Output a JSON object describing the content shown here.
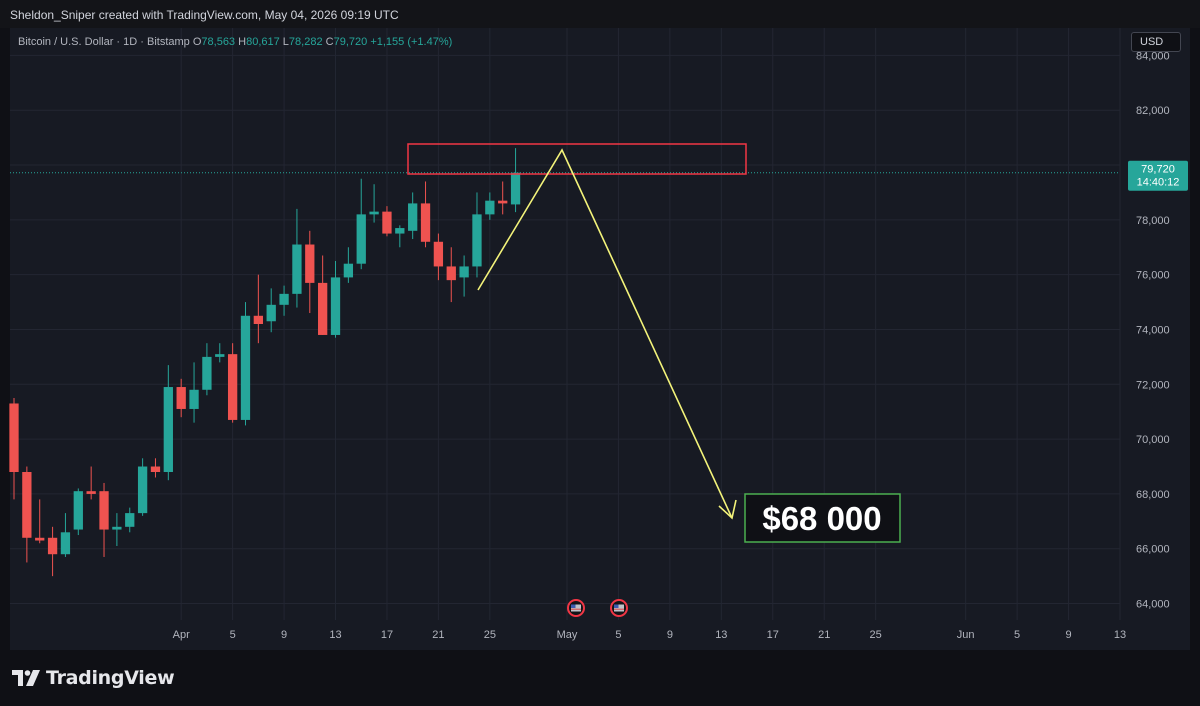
{
  "credit": "Sheldon_Sniper created with TradingView.com, May 04, 2026 09:19 UTC",
  "legend": {
    "symbol": "Bitcoin / U.S. Dollar · 1D · Bitstamp",
    "open_label": "O",
    "open": "78,563",
    "high_label": "H",
    "high": "80,617",
    "low_label": "L",
    "low": "78,282",
    "close_label": "C",
    "close": "79,720",
    "change": "+1,155 (+1.47%)"
  },
  "currency": "USD",
  "price_tag": {
    "price": "79,720",
    "countdown": "14:40:12"
  },
  "annotation": {
    "target_label": "$68 000"
  },
  "footer": {
    "brand": "TradingView"
  },
  "colors": {
    "up": "#26a69a",
    "down": "#ef5350",
    "resistance_box": "#f23645",
    "arrow": "#f3f37a",
    "target_box": "#4caf50",
    "background": "#171a23"
  },
  "icons": [
    "us-flag-event-icon",
    "us-flag-event-icon",
    "tradingview-logo-icon"
  ],
  "chart_data": {
    "type": "candlestick",
    "ylim": [
      63400,
      85000
    ],
    "yticks": [
      64000,
      66000,
      68000,
      70000,
      72000,
      74000,
      76000,
      78000,
      80000,
      82000,
      84000
    ],
    "ytick_labels": [
      "64,000",
      "66,000",
      "68,000",
      "70,000",
      "72,000",
      "74,000",
      "76,000",
      "78,000",
      "80,000",
      "82,000",
      "84,000"
    ],
    "xlim": [
      "2026-03-19",
      "2026-06-13"
    ],
    "xticks": [
      {
        "date": "2026-04-01",
        "label": "Apr"
      },
      {
        "date": "2026-04-05",
        "label": "5"
      },
      {
        "date": "2026-04-09",
        "label": "9"
      },
      {
        "date": "2026-04-13",
        "label": "13"
      },
      {
        "date": "2026-04-17",
        "label": "17"
      },
      {
        "date": "2026-04-21",
        "label": "21"
      },
      {
        "date": "2026-04-25",
        "label": "25"
      },
      {
        "date": "2026-05-01",
        "label": "May"
      },
      {
        "date": "2026-05-05",
        "label": "5"
      },
      {
        "date": "2026-05-09",
        "label": "9"
      },
      {
        "date": "2026-05-13",
        "label": "13"
      },
      {
        "date": "2026-05-17",
        "label": "17"
      },
      {
        "date": "2026-05-21",
        "label": "21"
      },
      {
        "date": "2026-05-25",
        "label": "25"
      },
      {
        "date": "2026-06-01",
        "label": "Jun"
      },
      {
        "date": "2026-06-05",
        "label": "5"
      },
      {
        "date": "2026-06-09",
        "label": "9"
      },
      {
        "date": "2026-06-13",
        "label": "13"
      }
    ],
    "last_price": 79720,
    "candles": [
      {
        "date": "2026-03-19",
        "o": 71300,
        "h": 71500,
        "l": 67800,
        "c": 68800
      },
      {
        "date": "2026-03-20",
        "o": 68800,
        "h": 69000,
        "l": 65500,
        "c": 66400
      },
      {
        "date": "2026-03-21",
        "o": 66400,
        "h": 67800,
        "l": 66200,
        "c": 66300
      },
      {
        "date": "2026-03-22",
        "o": 66400,
        "h": 66800,
        "l": 65000,
        "c": 65800
      },
      {
        "date": "2026-03-23",
        "o": 65800,
        "h": 67300,
        "l": 65700,
        "c": 66600
      },
      {
        "date": "2026-03-24",
        "o": 66700,
        "h": 68200,
        "l": 66500,
        "c": 68100
      },
      {
        "date": "2026-03-25",
        "o": 68100,
        "h": 69000,
        "l": 67800,
        "c": 68000
      },
      {
        "date": "2026-03-26",
        "o": 68100,
        "h": 68400,
        "l": 65700,
        "c": 66700
      },
      {
        "date": "2026-03-27",
        "o": 66700,
        "h": 67300,
        "l": 66100,
        "c": 66800
      },
      {
        "date": "2026-03-28",
        "o": 66800,
        "h": 67500,
        "l": 66600,
        "c": 67300
      },
      {
        "date": "2026-03-29",
        "o": 67300,
        "h": 69300,
        "l": 67200,
        "c": 69000
      },
      {
        "date": "2026-03-30",
        "o": 69000,
        "h": 69300,
        "l": 68600,
        "c": 68800
      },
      {
        "date": "2026-03-31",
        "o": 68800,
        "h": 72700,
        "l": 68500,
        "c": 71900
      },
      {
        "date": "2026-04-01",
        "o": 71900,
        "h": 72200,
        "l": 70800,
        "c": 71100
      },
      {
        "date": "2026-04-02",
        "o": 71100,
        "h": 72800,
        "l": 70600,
        "c": 71800
      },
      {
        "date": "2026-04-03",
        "o": 71800,
        "h": 73500,
        "l": 71600,
        "c": 73000
      },
      {
        "date": "2026-04-04",
        "o": 73000,
        "h": 73500,
        "l": 72800,
        "c": 73100
      },
      {
        "date": "2026-04-05",
        "o": 73100,
        "h": 73500,
        "l": 70600,
        "c": 70700
      },
      {
        "date": "2026-04-06",
        "o": 70700,
        "h": 75000,
        "l": 70500,
        "c": 74500
      },
      {
        "date": "2026-04-07",
        "o": 74500,
        "h": 76000,
        "l": 73500,
        "c": 74200
      },
      {
        "date": "2026-04-08",
        "o": 74300,
        "h": 75500,
        "l": 73900,
        "c": 74900
      },
      {
        "date": "2026-04-09",
        "o": 74900,
        "h": 75600,
        "l": 74500,
        "c": 75300
      },
      {
        "date": "2026-04-10",
        "o": 75300,
        "h": 78400,
        "l": 74800,
        "c": 77100
      },
      {
        "date": "2026-04-11",
        "o": 77100,
        "h": 77600,
        "l": 74600,
        "c": 75700
      },
      {
        "date": "2026-04-12",
        "o": 75700,
        "h": 76700,
        "l": 73800,
        "c": 73800
      },
      {
        "date": "2026-04-13",
        "o": 73800,
        "h": 76500,
        "l": 73700,
        "c": 75900
      },
      {
        "date": "2026-04-14",
        "o": 75900,
        "h": 77000,
        "l": 75700,
        "c": 76400
      },
      {
        "date": "2026-04-15",
        "o": 76400,
        "h": 79500,
        "l": 76200,
        "c": 78200
      },
      {
        "date": "2026-04-16",
        "o": 78200,
        "h": 79300,
        "l": 77900,
        "c": 78300
      },
      {
        "date": "2026-04-17",
        "o": 78300,
        "h": 78500,
        "l": 77400,
        "c": 77500
      },
      {
        "date": "2026-04-18",
        "o": 77500,
        "h": 77800,
        "l": 77000,
        "c": 77700
      },
      {
        "date": "2026-04-19",
        "o": 77600,
        "h": 79000,
        "l": 77300,
        "c": 78600
      },
      {
        "date": "2026-04-20",
        "o": 78600,
        "h": 79400,
        "l": 77000,
        "c": 77200
      },
      {
        "date": "2026-04-21",
        "o": 77200,
        "h": 77500,
        "l": 75800,
        "c": 76300
      },
      {
        "date": "2026-04-22",
        "o": 76300,
        "h": 77000,
        "l": 75000,
        "c": 75800
      },
      {
        "date": "2026-04-23",
        "o": 75900,
        "h": 76700,
        "l": 75200,
        "c": 76300
      },
      {
        "date": "2026-04-24",
        "o": 76300,
        "h": 79000,
        "l": 75900,
        "c": 78200
      },
      {
        "date": "2026-04-25",
        "o": 78200,
        "h": 79000,
        "l": 78000,
        "c": 78700
      },
      {
        "date": "2026-04-26",
        "o": 78700,
        "h": 79400,
        "l": 78200,
        "c": 78600
      },
      {
        "date": "2026-04-27",
        "o": 78563,
        "h": 80617,
        "l": 78282,
        "c": 79720
      }
    ]
  }
}
